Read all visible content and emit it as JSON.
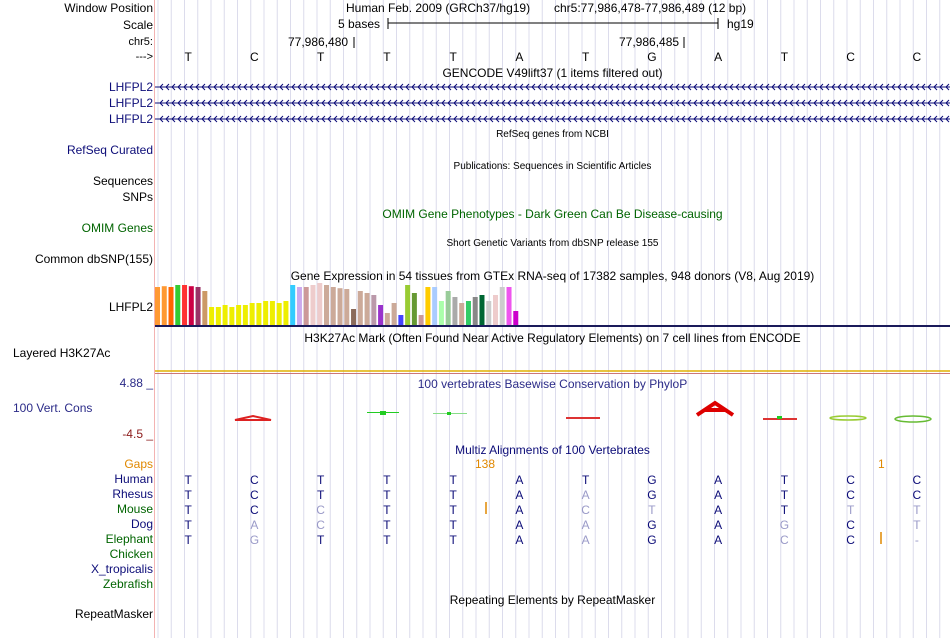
{
  "header": {
    "window_position_label": "Window Position",
    "scale_label": "Scale",
    "chrom_label": "chr5:",
    "strand_label": "--->",
    "assembly": "Human Feb. 2009 (GRCh37/hg19)",
    "position": "chr5:77,986,478-77,986,489 (12 bp)",
    "scale_text": "5 bases",
    "db": "hg19",
    "coord1": "77,986,480",
    "coord2": "77,986,485",
    "bases": [
      "T",
      "C",
      "T",
      "T",
      "T",
      "A",
      "T",
      "G",
      "A",
      "T",
      "C",
      "C"
    ]
  },
  "tracks": {
    "gencode": {
      "title": "GENCODE V49lift37 (1 items filtered out)",
      "items": [
        "LHFPL2",
        "LHFPL2",
        "LHFPL2"
      ],
      "color": "#0c0c78"
    },
    "refseq": {
      "title": "RefSeq genes from NCBI",
      "label": "RefSeq Curated",
      "color": "#0c0c78"
    },
    "pubs": {
      "title": "Publications: Sequences in Scientific Articles",
      "labels": [
        "Sequences",
        "SNPs"
      ]
    },
    "omim": {
      "title": "OMIM Gene Phenotypes - Dark Green Can Be Disease-causing",
      "label": "OMIM Genes",
      "color": "#006400"
    },
    "dbsnp": {
      "title": "Short Genetic Variants from dbSNP release 155",
      "label": "Common dbSNP(155)"
    },
    "gtex": {
      "title": "Gene Expression in 54 tissues from GTEx RNA-seq of 17382 samples, 948 donors (V8, Aug 2019)",
      "label": "LHFPL2",
      "values": [
        0.95,
        0.97,
        0.95,
        1.0,
        1.0,
        0.97,
        0.95,
        0.85,
        0.45,
        0.45,
        0.5,
        0.45,
        0.5,
        0.5,
        0.55,
        0.55,
        0.6,
        0.6,
        0.55,
        0.6,
        1.0,
        0.95,
        0.95,
        1.0,
        1.05,
        1.0,
        0.95,
        0.92,
        0.9,
        0.4,
        0.85,
        0.8,
        0.75,
        0.5,
        0.3,
        0.55,
        0.25,
        1.0,
        0.8,
        0.25,
        0.95,
        0.95,
        0.6,
        0.85,
        0.7,
        0.55,
        0.6,
        0.7,
        0.75,
        0.6,
        0.75,
        0.95,
        0.95,
        0.35
      ],
      "colors": [
        "#ff9933",
        "#ff9933",
        "#ff6600",
        "#33cc33",
        "#ff3333",
        "#cc0044",
        "#993366",
        "#cc9966",
        "#eeee00",
        "#eeee00",
        "#eeee00",
        "#eeee00",
        "#eeee00",
        "#eeee00",
        "#eeee00",
        "#eeee00",
        "#eeee00",
        "#eeee00",
        "#eeee00",
        "#eeee00",
        "#33ccff",
        "#ccaaee",
        "#cc9999",
        "#eecccc",
        "#eecccc",
        "#ccaa99",
        "#ccaa99",
        "#ccaa99",
        "#ccaa99",
        "#8b6b5b",
        "#ccaa99",
        "#ccaa99",
        "#bb99aa",
        "#9933cc",
        "#ccaa99",
        "#ccaa99",
        "#4444ff",
        "#99cc33",
        "#669933",
        "#cc9999",
        "#ffcc00",
        "#aaccff",
        "#aaffaa",
        "#99cc99",
        "#aaaaaa",
        "#ccaa99",
        "#33cc66",
        "#888888",
        "#006633",
        "#cccccc",
        "#eecccc",
        "#cccccc",
        "#ee55ee",
        "#cc00cc"
      ]
    },
    "h3k27ac": {
      "title": "H3K27Ac Mark (Often Found Near Active Regulatory Elements) on 7 cell lines from ENCODE",
      "label": "Layered H3K27Ac"
    },
    "phylop": {
      "title": "100 vertebrates Basewise Conservation by PhyloP",
      "label": "100 Vert. Cons",
      "max": "4.88 _",
      "min": "-4.5 _",
      "color": "#2b2b88"
    },
    "multiz": {
      "title": "Multiz Alignments of 100 Vertebrates",
      "gaps_label": "Gaps",
      "gap_138": "138",
      "gap_1": "1",
      "species": [
        {
          "name": "Human",
          "color": "#0c0c78",
          "seq": [
            "T",
            "C",
            "T",
            "T",
            "T",
            "A",
            "T",
            "G",
            "A",
            "T",
            "C",
            "C"
          ]
        },
        {
          "name": "Rhesus",
          "color": "#0c0c78",
          "seq": [
            "T",
            "C",
            "T",
            "T",
            "T",
            "A",
            "A",
            "G",
            "A",
            "T",
            "C",
            "C"
          ]
        },
        {
          "name": "Mouse",
          "color": "#006400",
          "seq": [
            "T",
            "C",
            "C",
            "T",
            "T",
            "A",
            "C",
            "T",
            "A",
            "T",
            "T",
            "T"
          ]
        },
        {
          "name": "Dog",
          "color": "#0c0c78",
          "seq": [
            "T",
            "A",
            "C",
            "T",
            "T",
            "A",
            "A",
            "G",
            "A",
            "G",
            "C",
            "T"
          ]
        },
        {
          "name": "Elephant",
          "color": "#006400",
          "seq": [
            "T",
            "G",
            "T",
            "T",
            "T",
            "A",
            "A",
            "G",
            "A",
            "C",
            "C",
            "-"
          ]
        },
        {
          "name": "Chicken",
          "color": "#006400",
          "seq": []
        },
        {
          "name": "X_tropicalis",
          "color": "#0c0c78",
          "seq": []
        },
        {
          "name": "Zebrafish",
          "color": "#006400",
          "seq": []
        }
      ]
    },
    "rmsk": {
      "title": "Repeating Elements by RepeatMasker",
      "label": "RepeatMasker"
    }
  }
}
